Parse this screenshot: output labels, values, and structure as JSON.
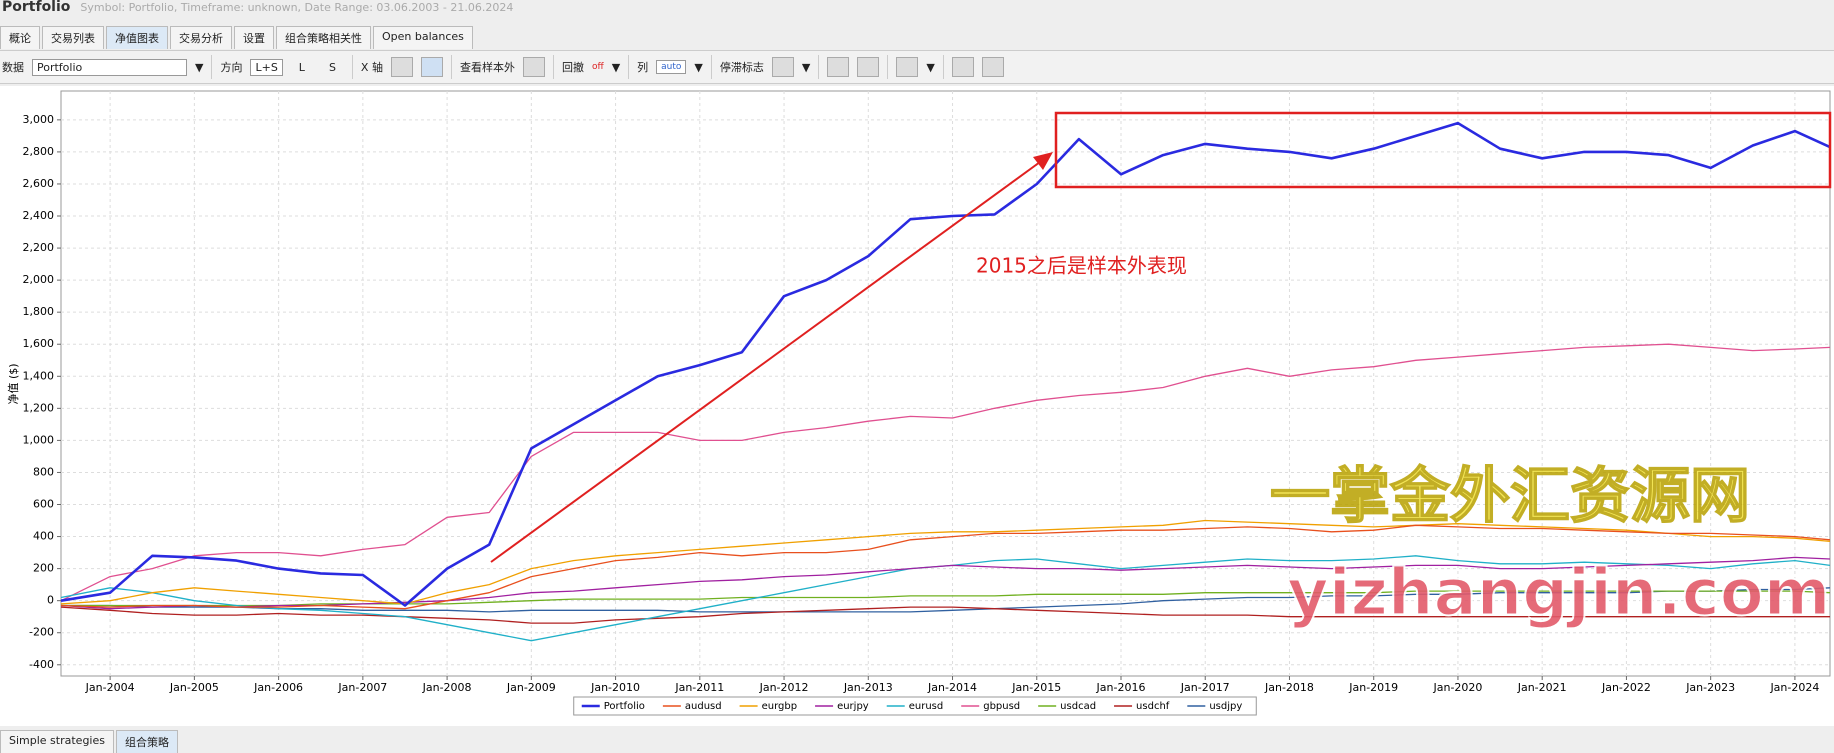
{
  "header": {
    "title": "Portfolio",
    "subtitle": "Symbol: Portfolio, Timeframe: unknown, Date Range: 03.06.2003 - 21.06.2024"
  },
  "tabs": [
    "概论",
    "交易列表",
    "净值图表",
    "交易分析",
    "设置",
    "组合策略相关性",
    "Open balances"
  ],
  "toolbar": {
    "data_label": "数据",
    "data_value": "Portfolio",
    "direction": "方向",
    "ls": "L+S",
    "l": "L",
    "s": "S",
    "x_axis": "X 轴",
    "out_sample": "查看样本外",
    "drawdown": "回撤",
    "off": "off",
    "column": "列",
    "auto": "auto",
    "stagnation": "停滞标志"
  },
  "chart_data": {
    "type": "line",
    "y_label": "净值 ($)",
    "annotation": "2015之后是样本外表现",
    "watermark": [
      "一掌金外汇资源网",
      "yizhangjin.com"
    ],
    "x": [
      "Jun-2003",
      "Jan-2004",
      "Jul-2004",
      "Jan-2005",
      "Jul-2005",
      "Jan-2006",
      "Jul-2006",
      "Jan-2007",
      "Jul-2007",
      "Jan-2008",
      "Jul-2008",
      "Jan-2009",
      "Jul-2009",
      "Jan-2010",
      "Jul-2010",
      "Jan-2011",
      "Jul-2011",
      "Jan-2012",
      "Jul-2012",
      "Jan-2013",
      "Jul-2013",
      "Jan-2014",
      "Jul-2014",
      "Jan-2015",
      "Jul-2015",
      "Jan-2016",
      "Jul-2016",
      "Jan-2017",
      "Jul-2017",
      "Jan-2018",
      "Jul-2018",
      "Jan-2019",
      "Jul-2019",
      "Jan-2020",
      "Jul-2020",
      "Jan-2021",
      "Jul-2021",
      "Jan-2022",
      "Jul-2022",
      "Jan-2023",
      "Jul-2023",
      "Jan-2024",
      "Jun-2024"
    ],
    "xlim": [
      "Jun-2003",
      "Jun-2024"
    ],
    "xticks": [
      "Jan-2004",
      "Jan-2005",
      "Jan-2006",
      "Jan-2007",
      "Jan-2008",
      "Jan-2009",
      "Jan-2010",
      "Jan-2011",
      "Jan-2012",
      "Jan-2013",
      "Jan-2014",
      "Jan-2015",
      "Jan-2016",
      "Jan-2017",
      "Jan-2018",
      "Jan-2019",
      "Jan-2020",
      "Jan-2021",
      "Jan-2022",
      "Jan-2023",
      "Jan-2024"
    ],
    "ylim": [
      -470,
      3180
    ],
    "yticks": [
      -400,
      -200,
      0,
      200,
      400,
      600,
      800,
      {
        "value": 1000,
        "label": "1,000"
      },
      {
        "value": 1200,
        "label": "1,200"
      },
      {
        "value": 1400,
        "label": "1,400"
      },
      {
        "value": 1600,
        "label": "1,600"
      },
      {
        "value": 1800,
        "label": "1,800"
      },
      {
        "value": 2000,
        "label": "2,000"
      },
      {
        "value": 2200,
        "label": "2,200"
      },
      {
        "value": 2400,
        "label": "2,400"
      },
      {
        "value": 2600,
        "label": "2,600"
      },
      {
        "value": 2800,
        "label": "2,800"
      },
      {
        "value": 3000,
        "label": "3,000"
      }
    ],
    "grid": true,
    "legend": "bottom",
    "series": [
      {
        "name": "Portfolio",
        "color": "#2a2ae0",
        "values": [
          0,
          50,
          280,
          270,
          250,
          200,
          170,
          160,
          -30,
          200,
          350,
          950,
          1100,
          1250,
          1400,
          1470,
          1550,
          1900,
          2000,
          2150,
          2380,
          2400,
          2410,
          2600,
          2880,
          2660,
          2780,
          2850,
          2820,
          2800,
          2760,
          2820,
          2900,
          2980,
          2820,
          2760,
          2800,
          2800,
          2780,
          2700,
          2840,
          2930,
          2830
        ]
      },
      {
        "name": "audusd",
        "color": "#e8501e",
        "values": [
          -30,
          -40,
          -30,
          -30,
          -40,
          -40,
          -30,
          -40,
          -50,
          0,
          50,
          150,
          200,
          250,
          270,
          300,
          280,
          300,
          300,
          320,
          380,
          400,
          420,
          420,
          430,
          440,
          440,
          450,
          460,
          450,
          430,
          440,
          470,
          460,
          450,
          450,
          440,
          430,
          420,
          420,
          410,
          400,
          380
        ]
      },
      {
        "name": "eurgbp",
        "color": "#f0a000",
        "values": [
          -20,
          0,
          50,
          80,
          60,
          40,
          20,
          0,
          -20,
          50,
          100,
          200,
          250,
          280,
          300,
          320,
          340,
          360,
          380,
          400,
          420,
          430,
          430,
          440,
          450,
          460,
          470,
          500,
          490,
          480,
          470,
          460,
          470,
          480,
          470,
          460,
          450,
          440,
          420,
          400,
          400,
          390,
          370
        ]
      },
      {
        "name": "eurjpy",
        "color": "#a020a0",
        "values": [
          -30,
          -50,
          -40,
          -30,
          -40,
          -30,
          -30,
          -20,
          -10,
          0,
          20,
          50,
          60,
          80,
          100,
          120,
          130,
          150,
          160,
          180,
          200,
          220,
          210,
          200,
          200,
          190,
          200,
          210,
          220,
          210,
          200,
          210,
          220,
          220,
          200,
          200,
          210,
          220,
          230,
          240,
          250,
          270,
          260
        ]
      },
      {
        "name": "eurusd",
        "color": "#20b0c8",
        "values": [
          20,
          80,
          50,
          0,
          -30,
          -50,
          -60,
          -80,
          -100,
          -150,
          -200,
          -250,
          -200,
          -150,
          -100,
          -50,
          0,
          50,
          100,
          150,
          200,
          220,
          250,
          260,
          230,
          200,
          220,
          240,
          260,
          250,
          250,
          260,
          280,
          250,
          230,
          230,
          240,
          230,
          220,
          200,
          230,
          250,
          220
        ]
      },
      {
        "name": "gbpusd",
        "color": "#e05090",
        "values": [
          0,
          150,
          200,
          280,
          300,
          300,
          280,
          320,
          350,
          520,
          550,
          900,
          1050,
          1050,
          1050,
          1000,
          1000,
          1050,
          1080,
          1120,
          1150,
          1140,
          1200,
          1250,
          1280,
          1300,
          1330,
          1400,
          1450,
          1400,
          1440,
          1460,
          1500,
          1520,
          1540,
          1560,
          1580,
          1590,
          1600,
          1580,
          1560,
          1570,
          1580
        ]
      },
      {
        "name": "usdcad",
        "color": "#70b020",
        "values": [
          -30,
          -30,
          -30,
          -30,
          -30,
          -30,
          -20,
          -20,
          -20,
          -20,
          -10,
          0,
          10,
          10,
          10,
          10,
          20,
          20,
          20,
          20,
          30,
          30,
          30,
          40,
          40,
          40,
          40,
          50,
          50,
          50,
          50,
          50,
          60,
          60,
          60,
          60,
          60,
          60,
          60,
          60,
          60,
          60,
          50
        ]
      },
      {
        "name": "usdchf",
        "color": "#b02020",
        "values": [
          -40,
          -60,
          -80,
          -90,
          -90,
          -80,
          -90,
          -90,
          -100,
          -110,
          -120,
          -140,
          -140,
          -120,
          -110,
          -100,
          -80,
          -70,
          -60,
          -50,
          -40,
          -40,
          -50,
          -60,
          -70,
          -80,
          -90,
          -90,
          -90,
          -100,
          -100,
          -100,
          -100,
          -100,
          -100,
          -100,
          -100,
          -100,
          -100,
          -100,
          -100,
          -100,
          -100
        ]
      },
      {
        "name": "usdjpy",
        "color": "#3060a0",
        "values": [
          -30,
          -30,
          -40,
          -40,
          -40,
          -50,
          -50,
          -60,
          -60,
          -60,
          -70,
          -60,
          -60,
          -60,
          -60,
          -70,
          -70,
          -70,
          -70,
          -70,
          -70,
          -60,
          -50,
          -40,
          -30,
          -20,
          0,
          10,
          20,
          20,
          30,
          30,
          40,
          40,
          50,
          50,
          50,
          50,
          60,
          60,
          70,
          70,
          80
        ]
      }
    ]
  },
  "bottom_tabs": [
    "Simple strategies",
    "组合策略"
  ]
}
